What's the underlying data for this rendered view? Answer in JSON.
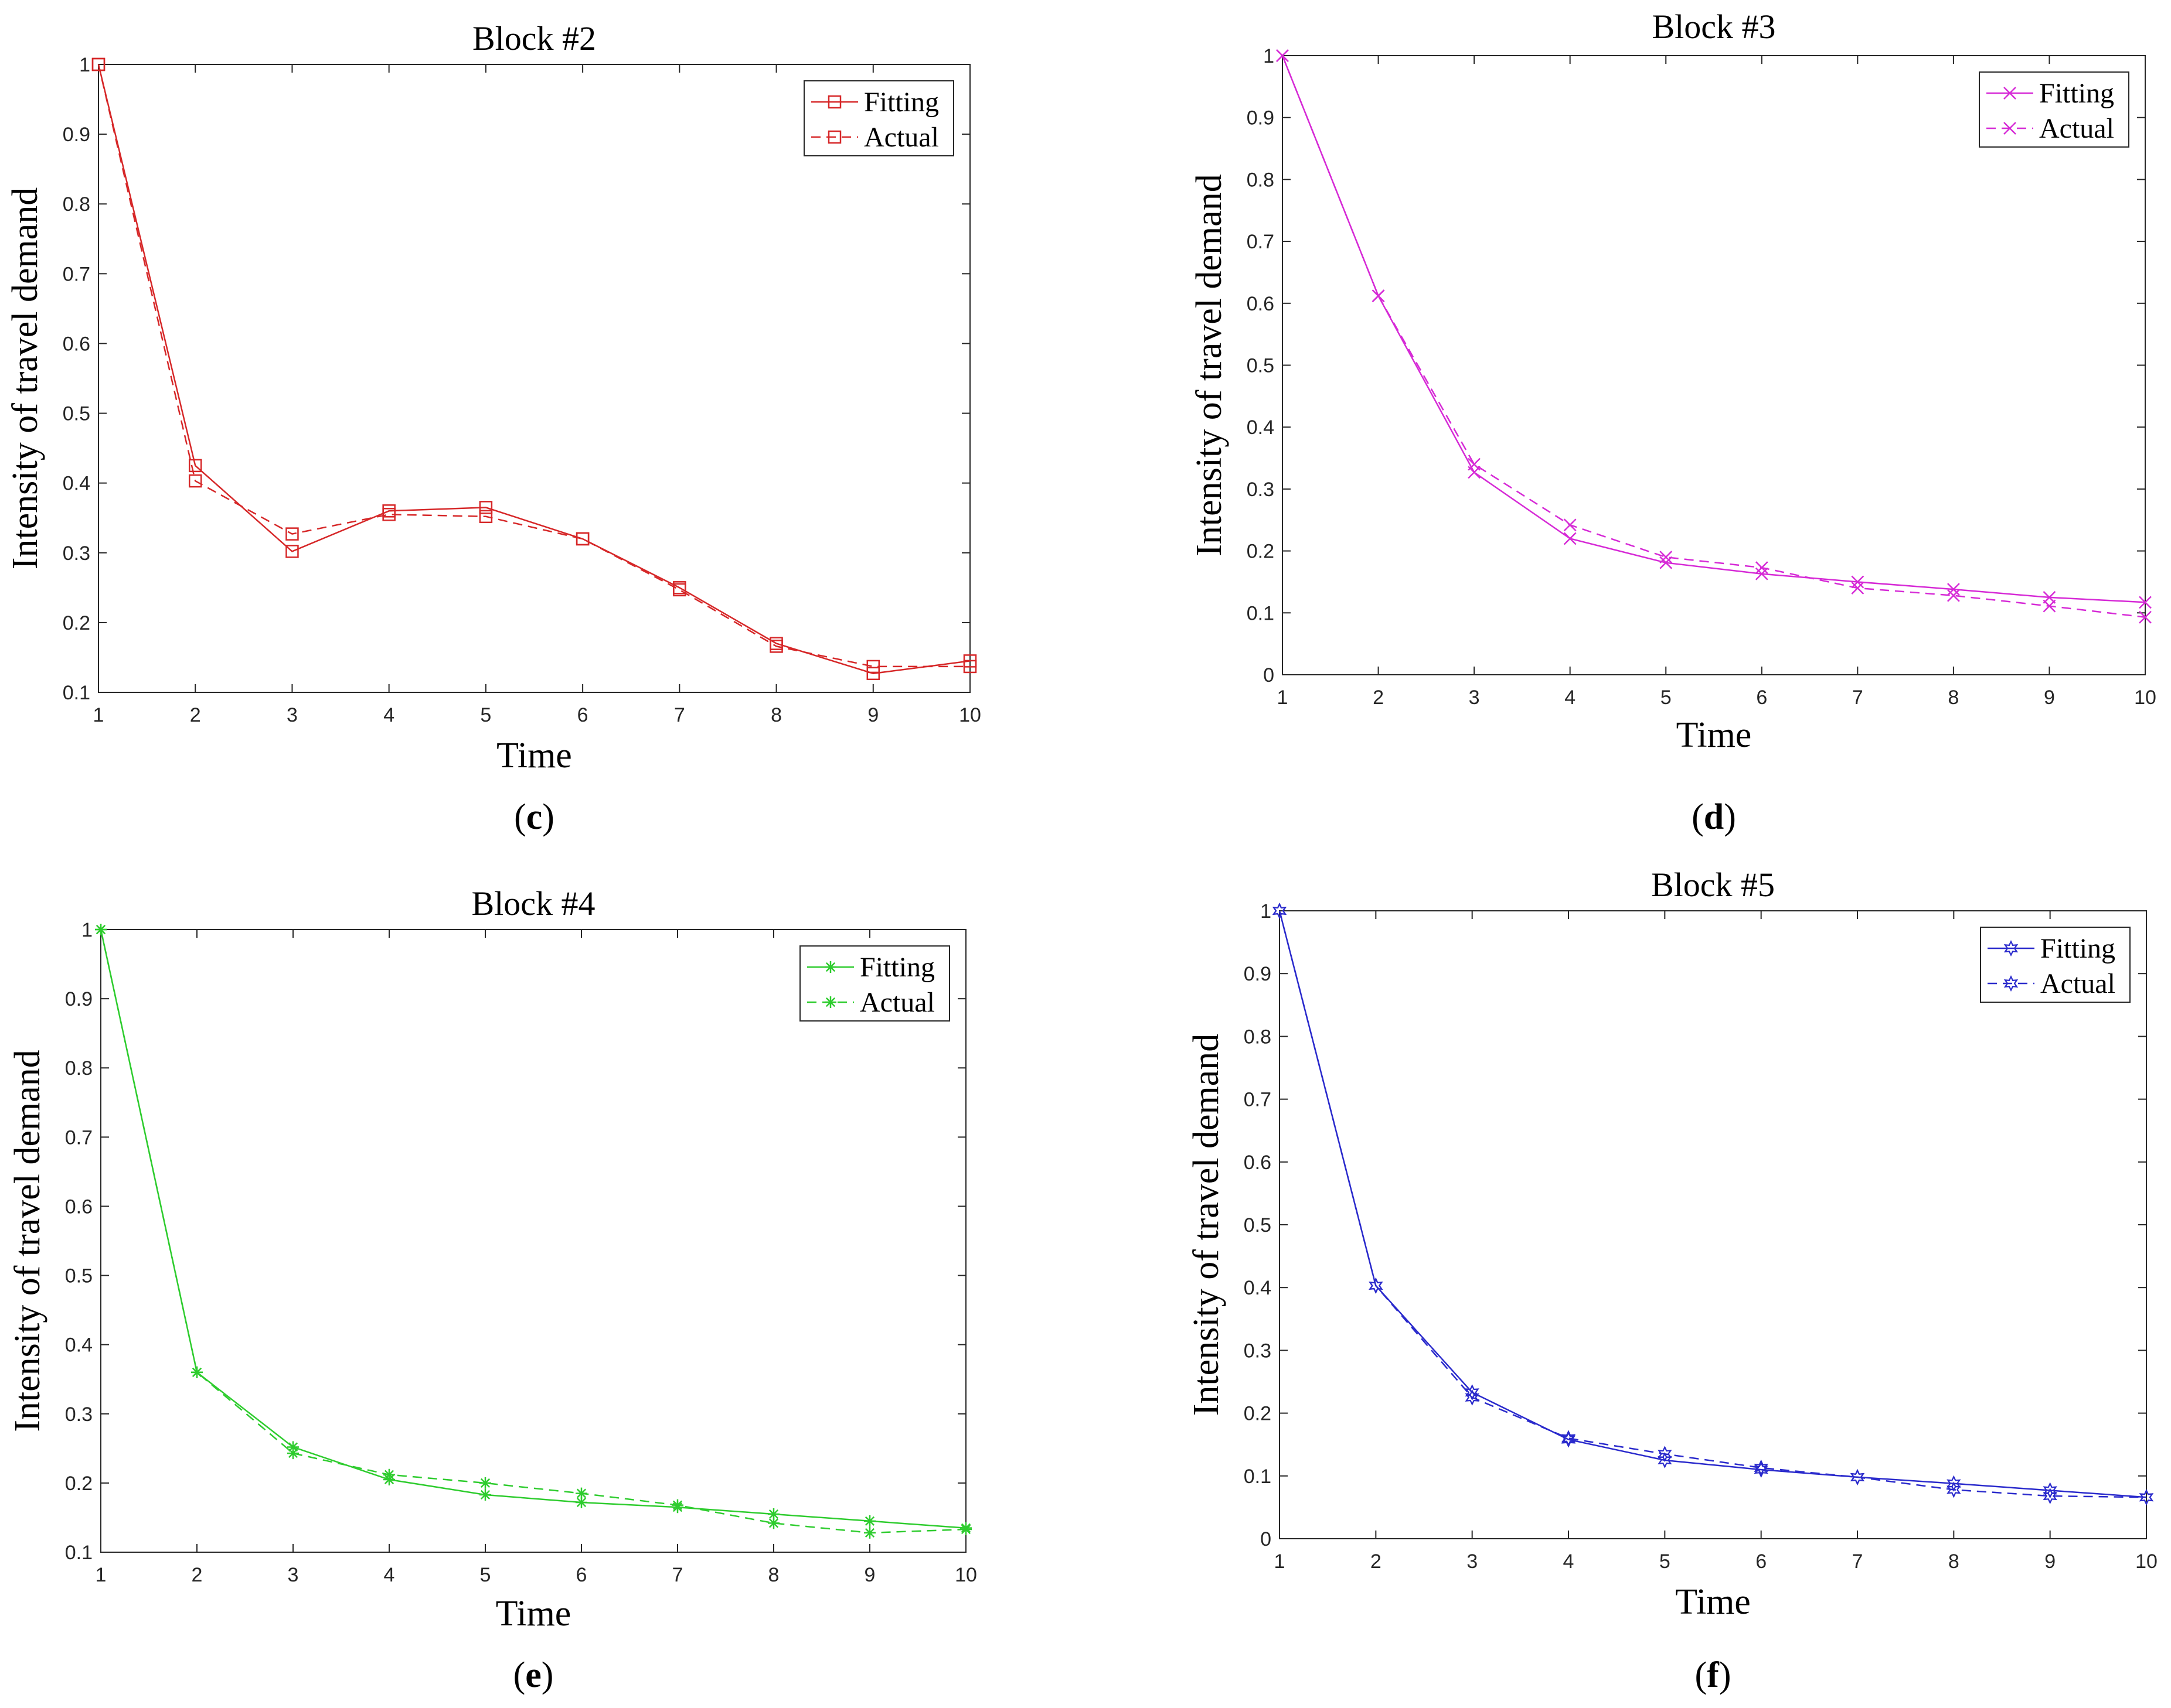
{
  "chart_data": [
    {
      "type": "line",
      "title": "Block #2",
      "xlabel": "Time",
      "ylabel": "Intensity of travel demand",
      "caption_letter": "c",
      "color": "#d62728",
      "marker": "square",
      "xlim": [
        1,
        10
      ],
      "ylim": [
        0.1,
        1
      ],
      "xticks": [
        "1",
        "2",
        "3",
        "4",
        "5",
        "6",
        "7",
        "8",
        "9",
        "10"
      ],
      "yticks": [
        "0.1",
        "0.2",
        "0.3",
        "0.4",
        "0.5",
        "0.6",
        "0.7",
        "0.8",
        "0.9",
        "1"
      ],
      "x": [
        1,
        2,
        3,
        4,
        5,
        6,
        7,
        8,
        9,
        10
      ],
      "legend_position": "top-right",
      "series": [
        {
          "name": "Fitting",
          "style": "solid",
          "values": [
            1.0,
            0.425,
            0.302,
            0.36,
            0.365,
            0.32,
            0.25,
            0.17,
            0.127,
            0.145
          ]
        },
        {
          "name": "Actual",
          "style": "dashed",
          "values": [
            1.0,
            0.403,
            0.327,
            0.355,
            0.352,
            0.32,
            0.247,
            0.166,
            0.137,
            0.137
          ]
        }
      ]
    },
    {
      "type": "line",
      "title": "Block #3",
      "xlabel": "Time",
      "ylabel": "Intensity of travel demand",
      "caption_letter": "d",
      "color": "#d62ad6",
      "marker": "x",
      "xlim": [
        1,
        10
      ],
      "ylim": [
        0,
        1
      ],
      "xticks": [
        "1",
        "2",
        "3",
        "4",
        "5",
        "6",
        "7",
        "8",
        "9",
        "10"
      ],
      "yticks": [
        "0",
        "0.1",
        "0.2",
        "0.3",
        "0.4",
        "0.5",
        "0.6",
        "0.7",
        "0.8",
        "0.9",
        "1"
      ],
      "x": [
        1,
        2,
        3,
        4,
        5,
        6,
        7,
        8,
        9,
        10
      ],
      "legend_position": "top-right",
      "series": [
        {
          "name": "Fitting",
          "style": "solid",
          "values": [
            1.0,
            0.612,
            0.327,
            0.22,
            0.181,
            0.163,
            0.15,
            0.138,
            0.125,
            0.117
          ]
        },
        {
          "name": "Actual",
          "style": "dashed",
          "values": [
            1.0,
            0.612,
            0.34,
            0.242,
            0.19,
            0.173,
            0.14,
            0.128,
            0.111,
            0.093
          ]
        }
      ]
    },
    {
      "type": "line",
      "title": "Block #4",
      "xlabel": "Time",
      "ylabel": "Intensity of travel demand",
      "caption_letter": "e",
      "color": "#2ecc2e",
      "marker": "asterisk",
      "xlim": [
        1,
        10
      ],
      "ylim": [
        0.1,
        1
      ],
      "xticks": [
        "1",
        "2",
        "3",
        "4",
        "5",
        "6",
        "7",
        "8",
        "9",
        "10"
      ],
      "yticks": [
        "0.1",
        "0.2",
        "0.3",
        "0.4",
        "0.5",
        "0.6",
        "0.7",
        "0.8",
        "0.9",
        "1"
      ],
      "x": [
        1,
        2,
        3,
        4,
        5,
        6,
        7,
        8,
        9,
        10
      ],
      "legend_position": "top-right",
      "series": [
        {
          "name": "Fitting",
          "style": "solid",
          "values": [
            1.0,
            0.36,
            0.252,
            0.205,
            0.183,
            0.172,
            0.165,
            0.155,
            0.145,
            0.135
          ]
        },
        {
          "name": "Actual",
          "style": "dashed",
          "values": [
            1.0,
            0.36,
            0.243,
            0.212,
            0.2,
            0.185,
            0.168,
            0.142,
            0.128,
            0.133
          ]
        }
      ]
    },
    {
      "type": "line",
      "title": "Block #5",
      "xlabel": "Time",
      "ylabel": "Intensity of travel demand",
      "caption_letter": "f",
      "color": "#2a2acc",
      "marker": "hexagram",
      "xlim": [
        1,
        10
      ],
      "ylim": [
        0,
        1
      ],
      "xticks": [
        "1",
        "2",
        "3",
        "4",
        "5",
        "6",
        "7",
        "8",
        "9",
        "10"
      ],
      "yticks": [
        "0",
        "0.1",
        "0.2",
        "0.3",
        "0.4",
        "0.5",
        "0.6",
        "0.7",
        "0.8",
        "0.9",
        "1"
      ],
      "x": [
        1,
        2,
        3,
        4,
        5,
        6,
        7,
        8,
        9,
        10
      ],
      "legend_position": "top-right",
      "series": [
        {
          "name": "Fitting",
          "style": "solid",
          "values": [
            1.0,
            0.403,
            0.233,
            0.158,
            0.125,
            0.11,
            0.098,
            0.088,
            0.077,
            0.066
          ]
        },
        {
          "name": "Actual",
          "style": "dashed",
          "values": [
            1.0,
            0.403,
            0.225,
            0.16,
            0.135,
            0.113,
            0.098,
            0.078,
            0.068,
            0.066
          ]
        }
      ]
    }
  ]
}
